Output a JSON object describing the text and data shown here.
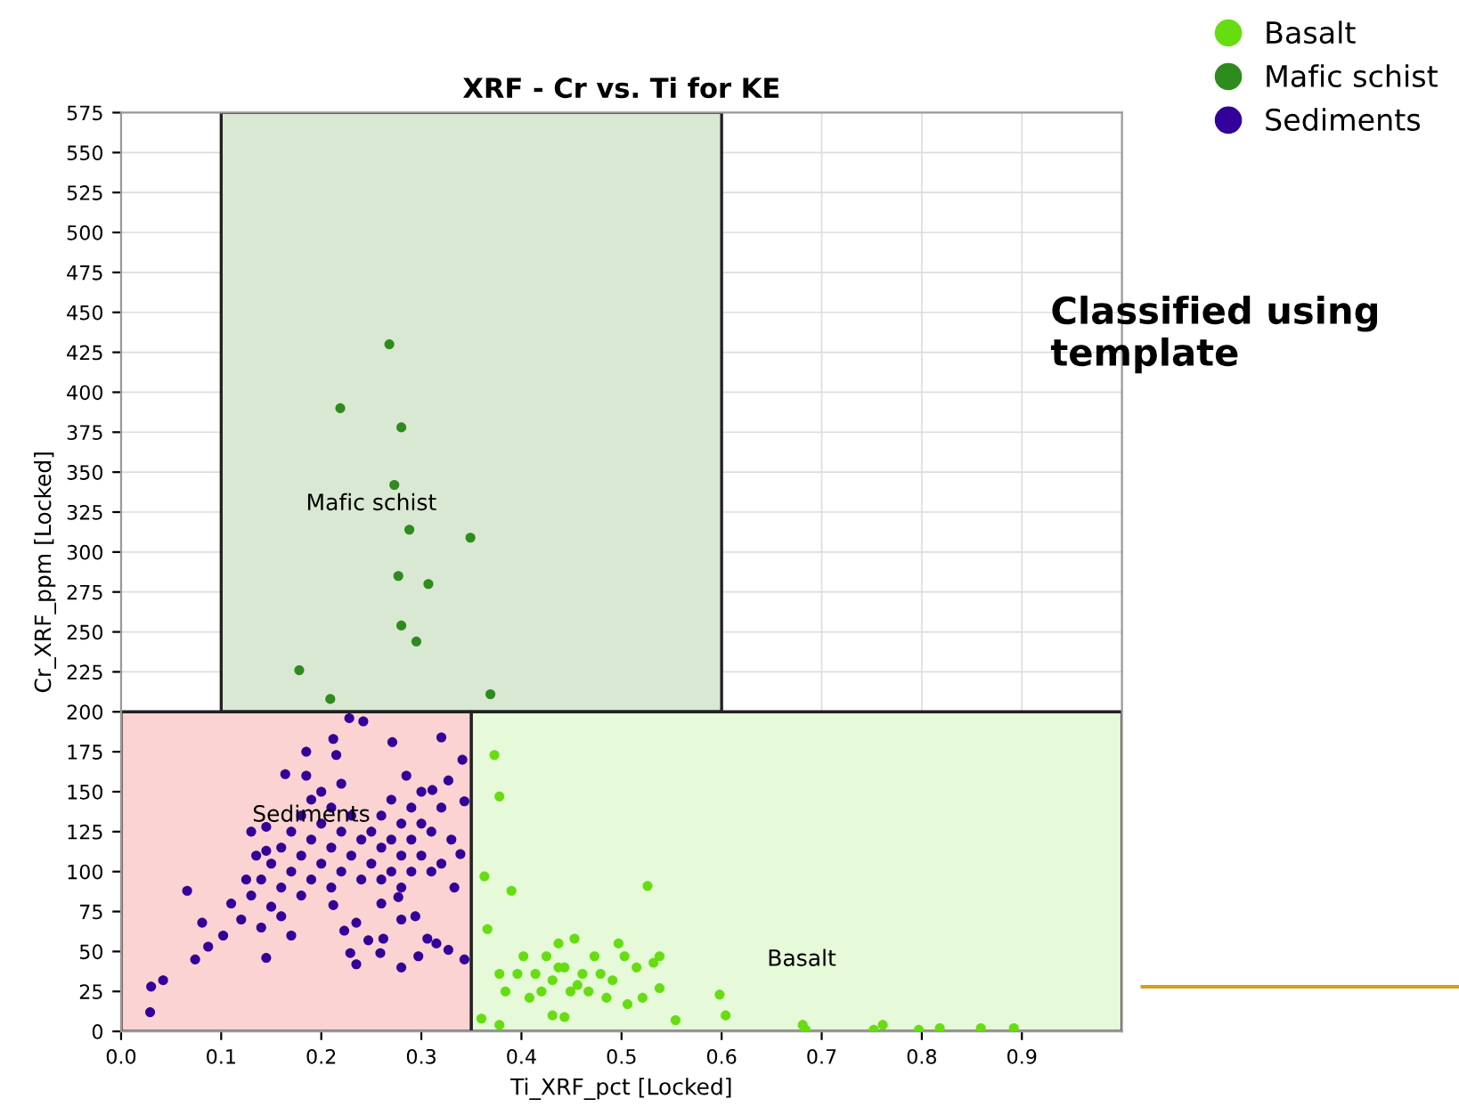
{
  "chart_data": {
    "type": "scatter",
    "title": "XRF - Cr vs. Ti for KE",
    "xlabel": "Ti_XRF_pct [Locked]",
    "ylabel": "Cr_XRF_ppm [Locked]",
    "xlim": [
      0.0,
      1.0
    ],
    "ylim": [
      0,
      575
    ],
    "xticks": [
      {
        "value": 0.0,
        "label": "0.0"
      },
      0.1,
      0.2,
      0.3,
      0.4,
      0.5,
      0.6,
      0.7,
      0.8,
      0.9
    ],
    "yticks": [
      0,
      25,
      50,
      75,
      100,
      125,
      150,
      175,
      200,
      225,
      250,
      275,
      300,
      325,
      350,
      375,
      400,
      425,
      450,
      475,
      500,
      525,
      550,
      575
    ],
    "grid": true,
    "legend": "top right",
    "series": [
      {
        "type": "area",
        "color": "#d9e8d2",
        "x": [
          0.1,
          0.1,
          0.6,
          0.6
        ],
        "values": [
          200,
          575,
          575,
          200
        ]
      },
      {
        "type": "area",
        "color": "#fbd3d3",
        "x": [
          0.0,
          0.0,
          0.35,
          0.35
        ],
        "values": [
          0,
          200,
          200,
          0
        ]
      },
      {
        "type": "area",
        "color": "#e6f9d8",
        "x": [
          0.35,
          0.35,
          1.0,
          1.0
        ],
        "values": [
          0,
          200,
          200,
          0
        ]
      },
      {
        "name": "Basalt",
        "color": "#66dd11",
        "marker": "circle",
        "x": [
          0.373,
          0.378,
          0.363,
          0.39,
          0.526,
          0.366,
          0.453,
          0.497,
          0.598,
          0.604,
          0.554,
          0.36,
          0.378,
          0.681,
          0.684,
          0.752,
          0.761,
          0.797,
          0.818,
          0.859,
          0.892,
          0.402,
          0.414,
          0.425,
          0.437,
          0.443,
          0.461,
          0.473,
          0.479,
          0.491,
          0.503,
          0.515,
          0.532,
          0.538,
          0.506,
          0.431,
          0.443,
          0.408,
          0.396,
          0.42,
          0.456,
          0.467,
          0.378,
          0.384,
          0.521,
          0.538,
          0.485,
          0.431,
          0.449,
          0.437
        ],
        "values": [
          173,
          147,
          97,
          88,
          91,
          64,
          58,
          55,
          23,
          10,
          7,
          8,
          4,
          4,
          1,
          1,
          4,
          1,
          2,
          2,
          2,
          47,
          36,
          47,
          55,
          40,
          36,
          47,
          36,
          32,
          47,
          40,
          43,
          47,
          17,
          10,
          9,
          21,
          36,
          25,
          29,
          25,
          36,
          25,
          21,
          27,
          21,
          32,
          25,
          40
        ]
      },
      {
        "name": "Mafic schist",
        "color": "#2e8b1e",
        "marker": "circle",
        "x": [
          0.268,
          0.219,
          0.28,
          0.273,
          0.288,
          0.349,
          0.277,
          0.307,
          0.28,
          0.295,
          0.178,
          0.209,
          0.369
        ],
        "values": [
          430,
          390,
          378,
          342,
          314,
          309,
          285,
          280,
          254,
          244,
          226,
          208,
          211
        ]
      },
      {
        "name": "Sediments",
        "color": "#330099",
        "marker": "circle",
        "x": [
          0.029,
          0.03,
          0.042,
          0.066,
          0.074,
          0.081,
          0.087,
          0.102,
          0.145,
          0.13,
          0.145,
          0.164,
          0.185,
          0.212,
          0.215,
          0.228,
          0.242,
          0.271,
          0.32,
          0.341,
          0.327,
          0.311,
          0.343,
          0.339,
          0.333,
          0.343,
          0.212,
          0.235,
          0.223,
          0.235,
          0.247,
          0.262,
          0.28,
          0.28,
          0.294,
          0.306,
          0.315,
          0.327,
          0.297,
          0.259,
          0.229,
          0.277,
          0.13,
          0.14,
          0.15,
          0.15,
          0.16,
          0.16,
          0.17,
          0.17,
          0.18,
          0.18,
          0.18,
          0.19,
          0.19,
          0.19,
          0.2,
          0.2,
          0.21,
          0.21,
          0.21,
          0.22,
          0.22,
          0.22,
          0.23,
          0.23,
          0.24,
          0.24,
          0.12,
          0.11,
          0.14,
          0.16,
          0.17,
          0.2,
          0.185,
          0.125,
          0.135,
          0.145,
          0.25,
          0.25,
          0.26,
          0.26,
          0.26,
          0.27,
          0.27,
          0.27,
          0.28,
          0.28,
          0.28,
          0.29,
          0.29,
          0.29,
          0.3,
          0.3,
          0.31,
          0.31,
          0.32,
          0.3,
          0.285,
          0.26,
          0.33,
          0.32
        ],
        "values": [
          12,
          28,
          32,
          88,
          45,
          68,
          53,
          60,
          46,
          125,
          113,
          161,
          175,
          183,
          173,
          196,
          194,
          181,
          184,
          170,
          157,
          151,
          144,
          111,
          90,
          45,
          79,
          68,
          63,
          42,
          57,
          58,
          40,
          70,
          72,
          58,
          55,
          51,
          47,
          49,
          49,
          84,
          85,
          95,
          78,
          105,
          90,
          115,
          100,
          125,
          85,
          110,
          135,
          95,
          120,
          145,
          105,
          130,
          90,
          115,
          140,
          100,
          125,
          155,
          110,
          135,
          95,
          120,
          70,
          80,
          65,
          72,
          60,
          150,
          160,
          95,
          110,
          128,
          105,
          125,
          95,
          115,
          135,
          100,
          120,
          145,
          90,
          110,
          130,
          100,
          120,
          140,
          110,
          130,
          125,
          100,
          140,
          150,
          160,
          80,
          120,
          105
        ]
      }
    ],
    "annotations": [
      "Mafic schist",
      "Sediments",
      "Basalt",
      "Classified using template"
    ]
  }
}
